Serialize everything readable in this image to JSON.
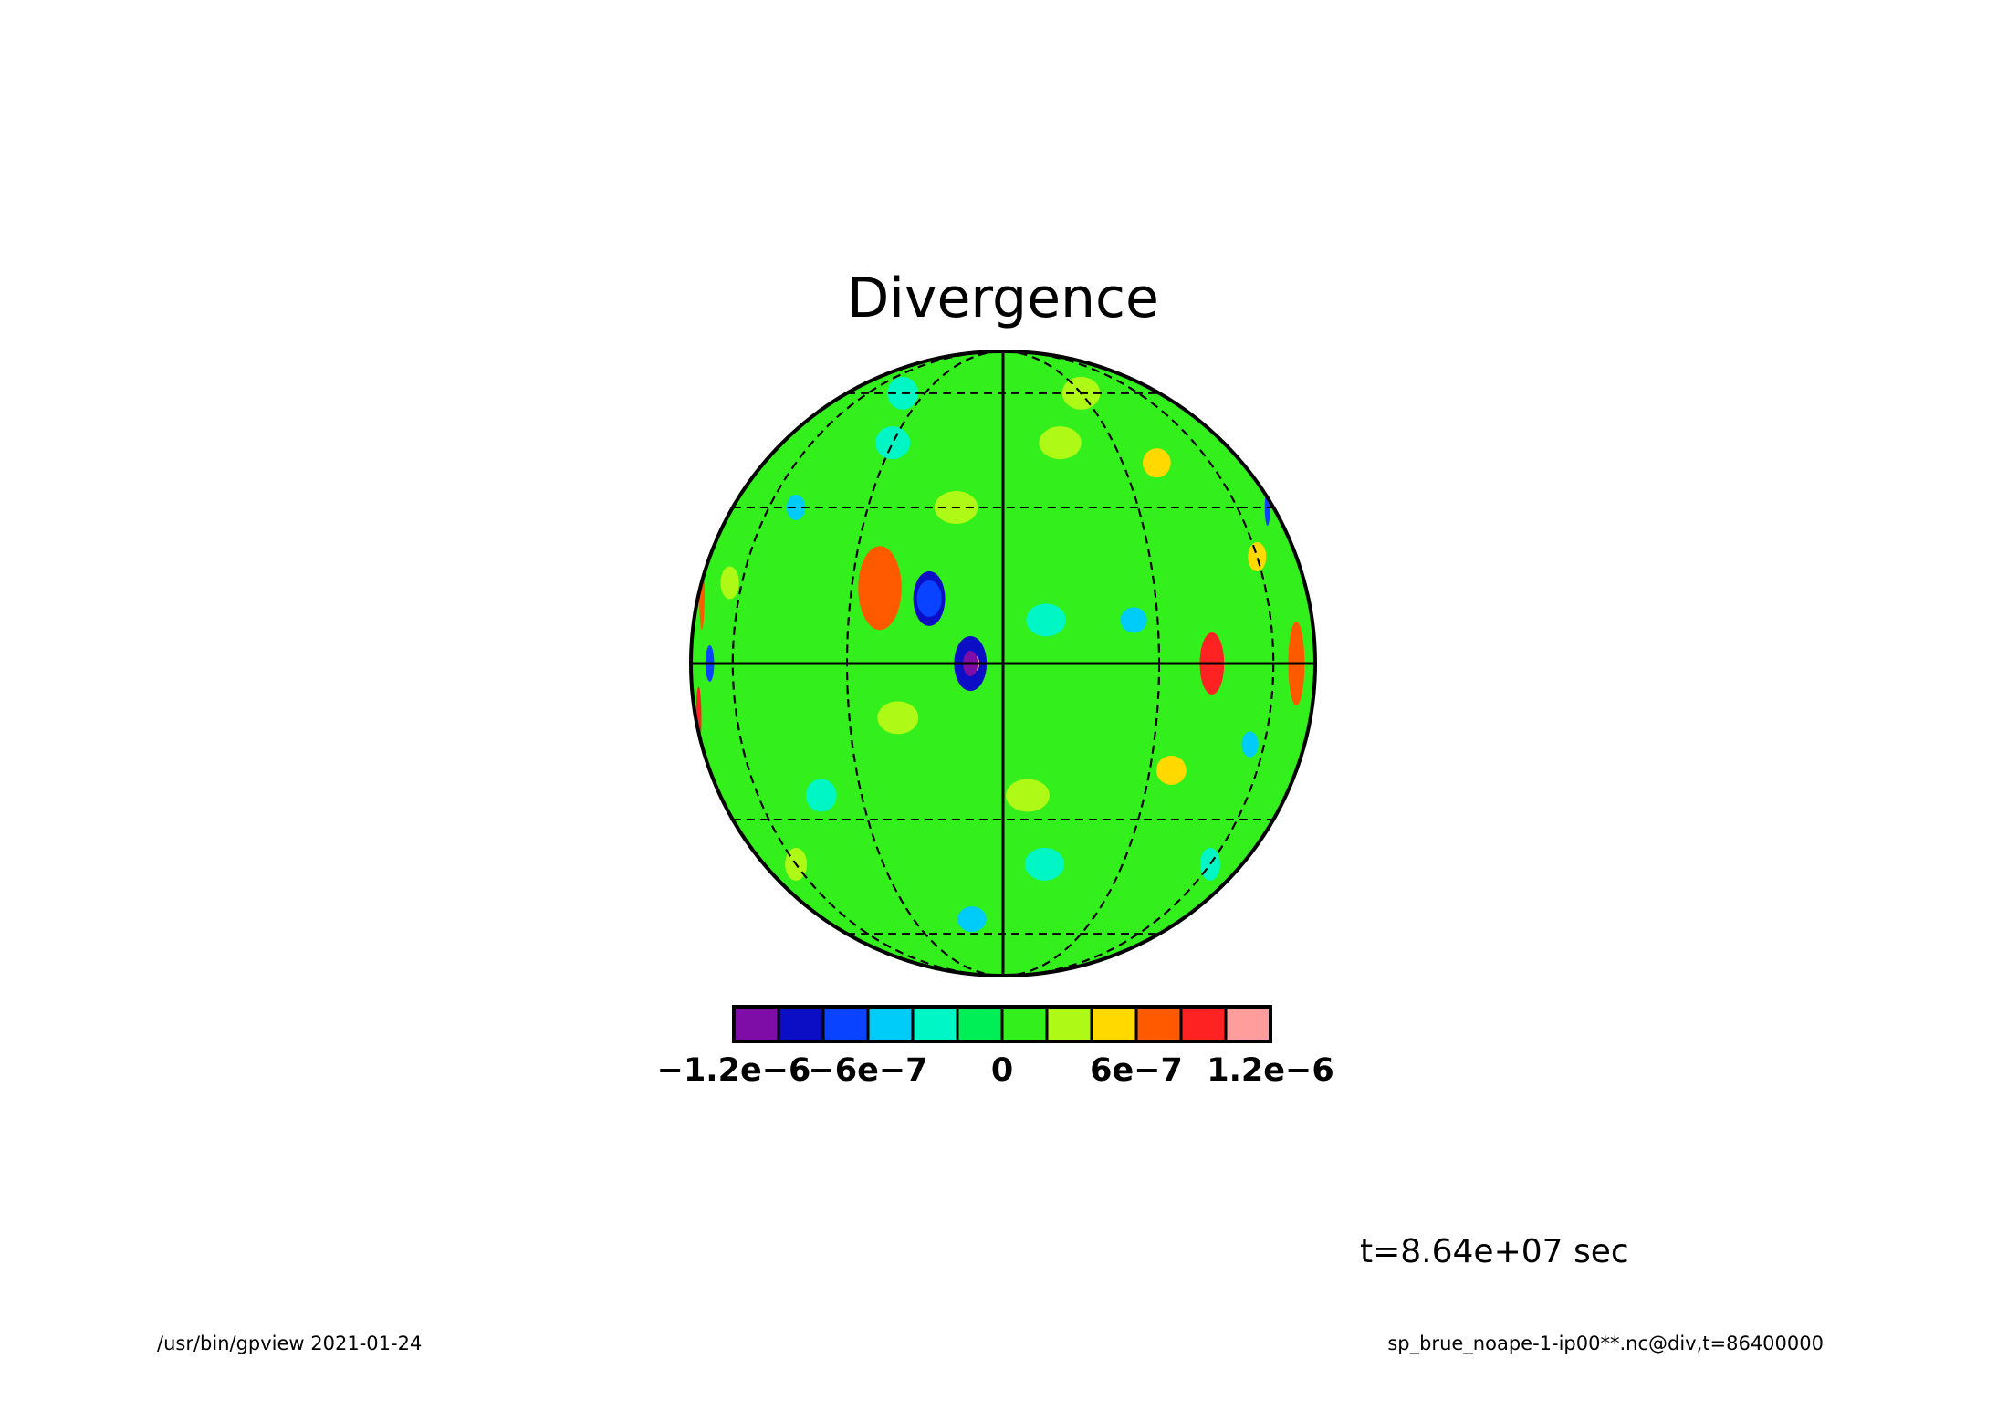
{
  "title": "Divergence",
  "time_label": "t=8.64e+07 sec",
  "footer": {
    "left": "/usr/bin/gpview  2021-01-24",
    "right": "sp_brue_noape-1-ip00**.nc@div,t=86400000"
  },
  "colorbar": {
    "colors": [
      "#7e0ca7",
      "#0b0ec4",
      "#0a43ff",
      "#00ccfa",
      "#00f7c5",
      "#00ee56",
      "#33ef1b",
      "#aff916",
      "#ffd900",
      "#ff5a00",
      "#ff2222",
      "#ff9d9d"
    ],
    "tick_labels": [
      "−1.2e−6",
      "−6e−7",
      "0",
      "6e−7",
      "1.2e−6"
    ],
    "tick_values": [
      -1.2e-06,
      -6e-07,
      0,
      6e-07,
      1.2e-06
    ],
    "range": [
      -1.2e-06,
      1.2e-06
    ],
    "step": 2e-07
  },
  "map": {
    "projection": "orthographic",
    "background_color": "#33ef1b",
    "anomalies": [
      {
        "lon": -5,
        "lat": 0,
        "level": 11
      },
      {
        "lon": -6,
        "lat": 0,
        "level": 0
      },
      {
        "lon": -6,
        "lat": 0,
        "level": 1
      },
      {
        "lon": -24,
        "lat": 12,
        "level": 10
      },
      {
        "lon": -24,
        "lat": 14,
        "level": 9
      },
      {
        "lon": -14,
        "lat": 12,
        "level": 1
      },
      {
        "lon": -14,
        "lat": 12,
        "level": 2
      },
      {
        "lon": -70,
        "lat": 0,
        "level": 2
      },
      {
        "lon": -82,
        "lat": -10,
        "level": 10
      },
      {
        "lon": -84,
        "lat": 14,
        "level": 9
      },
      {
        "lon": 42,
        "lat": 0,
        "level": 10
      },
      {
        "lon": 70,
        "lat": 0,
        "level": 9
      },
      {
        "lon": 78,
        "lat": 30,
        "level": 2
      },
      {
        "lon": 8,
        "lat": 8,
        "level": 4
      },
      {
        "lon": 25,
        "lat": 8,
        "level": 3
      },
      {
        "lon": 60,
        "lat": 20,
        "level": 8
      },
      {
        "lon": 35,
        "lat": -20,
        "level": 8
      },
      {
        "lon": -20,
        "lat": -10,
        "level": 7
      },
      {
        "lon": 55,
        "lat": -15,
        "level": 3
      },
      {
        "lon": -50,
        "lat": 30,
        "level": 3
      },
      {
        "lon": -40,
        "lat": -25,
        "level": 4
      },
      {
        "lon": 15,
        "lat": 45,
        "level": 7
      },
      {
        "lon": -30,
        "lat": 45,
        "level": 4
      },
      {
        "lon": 10,
        "lat": -40,
        "level": 4
      },
      {
        "lon": -10,
        "lat": -55,
        "level": 3
      },
      {
        "lon": 60,
        "lat": -40,
        "level": 4
      },
      {
        "lon": -60,
        "lat": -40,
        "level": 7
      },
      {
        "lon": 40,
        "lat": 40,
        "level": 8
      },
      {
        "lon": -65,
        "lat": 15,
        "level": 7
      },
      {
        "lon": 5,
        "lat": -25,
        "level": 7
      },
      {
        "lon": -10,
        "lat": 30,
        "level": 7
      },
      {
        "lon": 30,
        "lat": 60,
        "level": 7
      },
      {
        "lon": -40,
        "lat": 60,
        "level": 4
      }
    ]
  }
}
